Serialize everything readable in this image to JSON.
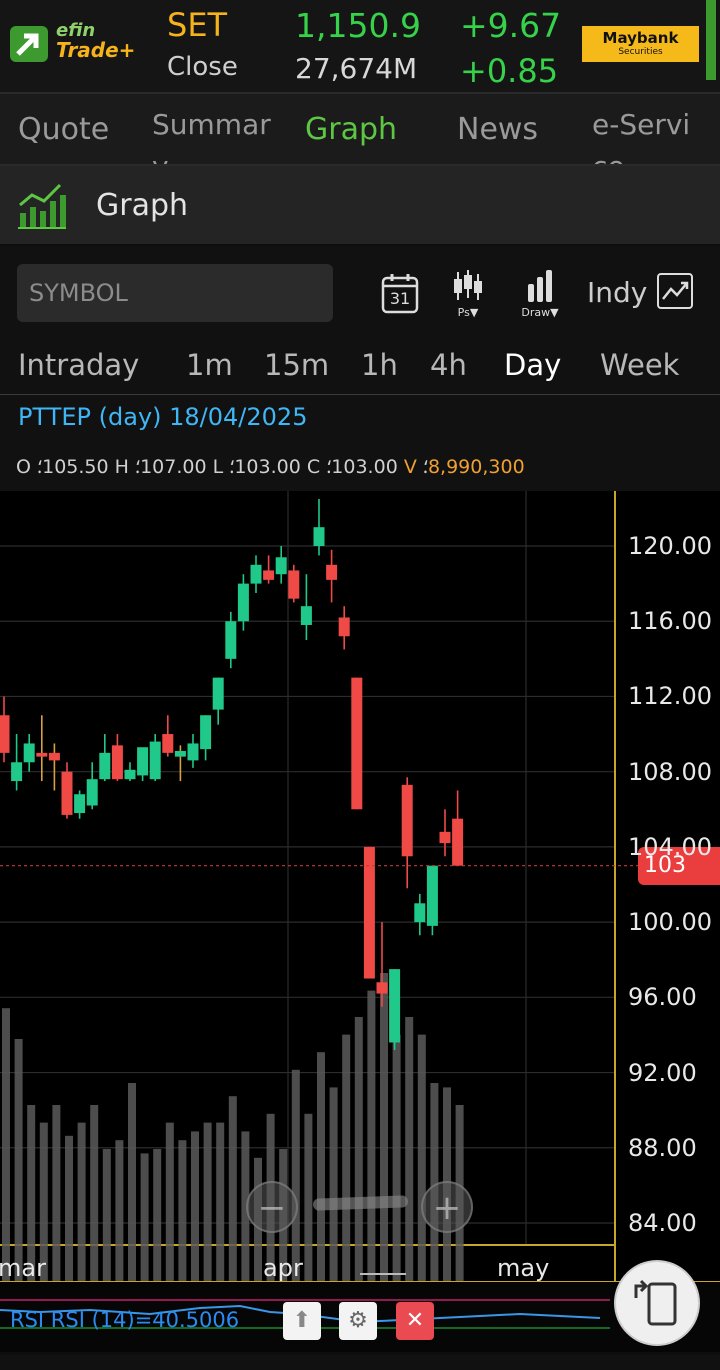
{
  "header": {
    "logo_top": "efin",
    "logo_bottom": "Trade+",
    "market": "SET",
    "close_label": "Close",
    "index_value": "1,150.9",
    "volume": "27,674M",
    "change": "+9.67",
    "change_pct": "+0.85",
    "broker_name": "Maybank",
    "broker_sub": "Securities",
    "colors": {
      "up": "#35d24a",
      "accent": "#f6b31b"
    }
  },
  "tabs": [
    {
      "label": "Quote",
      "active": false
    },
    {
      "label": "Summar\ny",
      "active": false
    },
    {
      "label": "Graph",
      "active": true
    },
    {
      "label": "News",
      "active": false
    },
    {
      "label": "e-Servi\nce",
      "active": false
    }
  ],
  "page_title": "Graph",
  "toolbar": {
    "symbol_placeholder": "SYMBOL",
    "calendar_day": "31",
    "ps_label": "Ps▼",
    "draw_label": "Draw▼",
    "indy_label": "Indy"
  },
  "periods": [
    {
      "label": "Intraday",
      "active": false
    },
    {
      "label": "1m",
      "active": false
    },
    {
      "label": "15m",
      "active": false
    },
    {
      "label": "1h",
      "active": false
    },
    {
      "label": "4h",
      "active": false
    },
    {
      "label": "Day",
      "active": true
    },
    {
      "label": "Week",
      "active": false
    }
  ],
  "chart_info": {
    "title": "PTTEP (day) 18/04/2025",
    "o_label": "O",
    "o_value": "105.50",
    "h_label": "H",
    "h_value": "107.00",
    "l_label": "L",
    "l_value": "103.00",
    "c_label": "C",
    "c_value": "103.00",
    "v_label": "V",
    "v_value": "8,990,300"
  },
  "chart_data": {
    "type": "candlestick",
    "ylim": [
      82,
      123
    ],
    "y_ticks": [
      "120.00",
      "116.00",
      "112.00",
      "108.00",
      "104.00",
      "100.00",
      "96.00",
      "92.00",
      "88.00",
      "84.00"
    ],
    "x_ticks": [
      "mar",
      "apr",
      "may"
    ],
    "last_price": "103",
    "candles": [
      {
        "o": 111,
        "h": 112,
        "l": 108.5,
        "c": 109
      },
      {
        "o": 107.5,
        "h": 110,
        "l": 107,
        "c": 108.5
      },
      {
        "o": 108.5,
        "h": 110,
        "l": 108,
        "c": 109.5
      },
      {
        "o": 109,
        "h": 111,
        "l": 107.5,
        "c": 108.8
      },
      {
        "o": 109,
        "h": 109.5,
        "l": 107,
        "c": 108.6
      },
      {
        "o": 108,
        "h": 108.5,
        "l": 105.5,
        "c": 105.7
      },
      {
        "o": 105.8,
        "h": 107,
        "l": 105.5,
        "c": 106.8
      },
      {
        "o": 106.2,
        "h": 108.5,
        "l": 106,
        "c": 107.6
      },
      {
        "o": 107.6,
        "h": 110,
        "l": 107.5,
        "c": 109
      },
      {
        "o": 109.4,
        "h": 110,
        "l": 107.5,
        "c": 107.6
      },
      {
        "o": 107.6,
        "h": 108.5,
        "l": 107.5,
        "c": 108.1
      },
      {
        "o": 107.8,
        "h": 109,
        "l": 107.5,
        "c": 109.3
      },
      {
        "o": 107.6,
        "h": 110,
        "l": 107.5,
        "c": 109.6
      },
      {
        "o": 110,
        "h": 111,
        "l": 108.8,
        "c": 109
      },
      {
        "o": 108.8,
        "h": 109.4,
        "l": 107.5,
        "c": 109.1
      },
      {
        "o": 108.6,
        "h": 110,
        "l": 108.2,
        "c": 109.5
      },
      {
        "o": 109.2,
        "h": 111,
        "l": 108.6,
        "c": 111
      },
      {
        "o": 111.3,
        "h": 113,
        "l": 110.5,
        "c": 113
      },
      {
        "o": 114,
        "h": 116.5,
        "l": 113.5,
        "c": 116
      },
      {
        "o": 116,
        "h": 118.5,
        "l": 115.5,
        "c": 118
      },
      {
        "o": 118,
        "h": 119.5,
        "l": 117.5,
        "c": 119
      },
      {
        "o": 118.7,
        "h": 119.5,
        "l": 118,
        "c": 118.2
      },
      {
        "o": 118.5,
        "h": 120,
        "l": 118,
        "c": 119.4
      },
      {
        "o": 118.7,
        "h": 119,
        "l": 117,
        "c": 117.2
      },
      {
        "o": 115.8,
        "h": 118.5,
        "l": 115,
        "c": 116.8
      },
      {
        "o": 120,
        "h": 122.5,
        "l": 119.5,
        "c": 121
      },
      {
        "o": 119,
        "h": 119.8,
        "l": 117,
        "c": 118.2
      },
      {
        "o": 116.2,
        "h": 116.8,
        "l": 114.5,
        "c": 115.2
      },
      {
        "o": 113,
        "h": 113,
        "l": 106,
        "c": 106
      },
      {
        "o": 104,
        "h": 104,
        "l": 97,
        "c": 97
      },
      {
        "o": 96.8,
        "h": 100,
        "l": 95.5,
        "c": 96.2
      },
      {
        "o": 93.6,
        "h": 97.5,
        "l": 93.2,
        "c": 97.5
      },
      {
        "o": 107.3,
        "h": 107.7,
        "l": 101.8,
        "c": 103.5
      },
      {
        "o": 100,
        "h": 101.5,
        "l": 99.3,
        "c": 101
      },
      {
        "o": 99.8,
        "h": 103,
        "l": 99.3,
        "c": 103
      },
      {
        "o": 104.8,
        "h": 106,
        "l": 103.5,
        "c": 104.2
      },
      {
        "o": 105.5,
        "h": 107,
        "l": 103,
        "c": 103
      }
    ],
    "volume_relative": [
      0.62,
      0.55,
      0.4,
      0.36,
      0.4,
      0.33,
      0.36,
      0.4,
      0.3,
      0.32,
      0.45,
      0.29,
      0.3,
      0.36,
      0.32,
      0.34,
      0.36,
      0.36,
      0.42,
      0.34,
      0.28,
      0.38,
      0.3,
      0.48,
      0.38,
      0.52,
      0.44,
      0.56,
      0.6,
      0.66,
      0.7,
      0.56,
      0.6,
      0.56,
      0.45,
      0.44,
      0.4
    ],
    "colors": {
      "up": "#20c98a",
      "down": "#ef4a45"
    }
  },
  "rsi": {
    "label": "RSI  RSI (14)=40.5006",
    "up_icon": "up-arrow-icon",
    "settings_icon": "gear-icon",
    "close_icon": "close-icon"
  },
  "fab_icon": "rotate-tablet-icon"
}
